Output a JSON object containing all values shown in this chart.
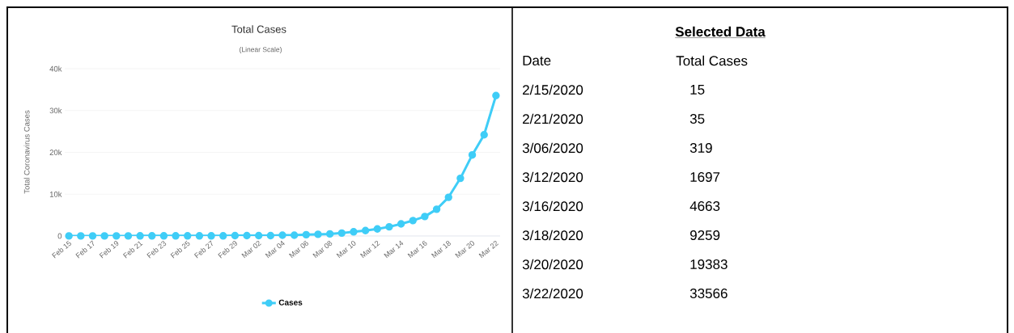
{
  "chart_data": [
    {
      "type": "line",
      "title": "Total Cases",
      "subtitle": "(Linear Scale)",
      "ylabel": "Total Coronavirus Cases",
      "categories": [
        "Feb 15",
        null,
        "Feb 17",
        null,
        "Feb 19",
        null,
        "Feb 21",
        null,
        "Feb 23",
        null,
        "Feb 25",
        null,
        "Feb 27",
        null,
        "Feb 29",
        null,
        "Mar 02",
        null,
        "Mar 04",
        null,
        "Mar 06",
        null,
        "Mar 08",
        null,
        "Mar 10",
        null,
        "Mar 12",
        null,
        "Mar 14",
        null,
        "Mar 16",
        null,
        "Mar 18",
        null,
        "Mar 20",
        null,
        "Mar 22"
      ],
      "series": [
        {
          "name": "Cases",
          "color": "#3fcdf7",
          "values": [
            15,
            15,
            15,
            15,
            15,
            15,
            35,
            35,
            35,
            35,
            35,
            35,
            35,
            35,
            100,
            100,
            100,
            100,
            200,
            200,
            319,
            400,
            500,
            700,
            1000,
            1300,
            1697,
            2200,
            2900,
            3700,
            4663,
            6400,
            9259,
            13800,
            19383,
            24200,
            33566
          ]
        }
      ],
      "ylim": [
        0,
        40000
      ],
      "yticks": [
        {
          "value": 0,
          "label": "0"
        },
        {
          "value": 10000,
          "label": "10k"
        },
        {
          "value": 20000,
          "label": "20k"
        },
        {
          "value": 30000,
          "label": "30k"
        },
        {
          "value": 40000,
          "label": "40k"
        }
      ],
      "grid": "y",
      "legend": "bottom",
      "marker": "circle",
      "line_style": "solid"
    },
    {
      "type": "other",
      "title": "Selected Data",
      "annotations": [
        "Date",
        "Total Cases"
      ],
      "categories": [
        "2/15/2020",
        "2/21/2020",
        "3/06/2020",
        "3/12/2020",
        "3/16/2020",
        "3/18/2020",
        "3/20/2020",
        "3/22/2020"
      ],
      "values": [
        15,
        35,
        319,
        1697,
        4663,
        9259,
        19383,
        33566
      ],
      "data_labels": true
    }
  ]
}
